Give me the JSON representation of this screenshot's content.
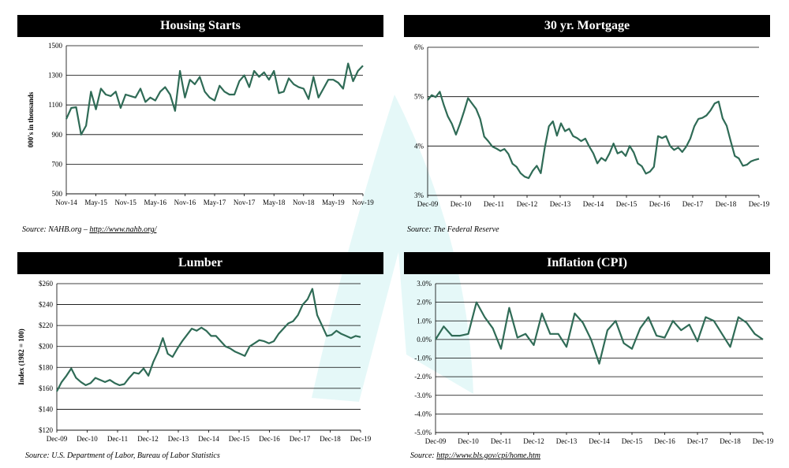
{
  "colors": {
    "line": "#2f6b56",
    "header_bg": "#000000",
    "header_fg": "#ffffff",
    "grid": "#000000",
    "watermark": "#d4f4f4"
  },
  "sources": {
    "housing": {
      "prefix": "Source:  NAHB.org – ",
      "link": "http://www.nahb.org/"
    },
    "mortgage": {
      "prefix": "Source:  The Federal Reserve",
      "link": ""
    },
    "lumber": {
      "prefix": "Source:  U.S. Department of Labor, Bureau of Labor Statistics",
      "link": ""
    },
    "cpi": {
      "prefix": "Source: ",
      "link": "http://www.bls.gov/cpi/home.htm"
    }
  },
  "chart_data": [
    {
      "id": "housing",
      "type": "line",
      "title": "Housing Starts",
      "xlabel": "",
      "ylabel": "000's in thousands",
      "ylim": [
        500,
        1500
      ],
      "yticks": [
        500,
        700,
        900,
        1100,
        1300,
        1500
      ],
      "ytick_labels": [
        "500",
        "700",
        "900",
        "1100",
        "1300",
        "1500"
      ],
      "xtick_labels": [
        "Nov-14",
        "May-15",
        "Nov-15",
        "May-16",
        "Nov-16",
        "May-17",
        "Nov-17",
        "May-18",
        "Nov-18",
        "May-19",
        "Nov-19"
      ],
      "grid": true,
      "series": [
        {
          "values": [
            1005,
            1080,
            1085,
            900,
            960,
            1190,
            1070,
            1210,
            1170,
            1160,
            1190,
            1080,
            1170,
            1160,
            1150,
            1210,
            1120,
            1150,
            1130,
            1190,
            1220,
            1170,
            1060,
            1330,
            1150,
            1270,
            1240,
            1290,
            1190,
            1150,
            1130,
            1230,
            1190,
            1170,
            1170,
            1260,
            1300,
            1220,
            1330,
            1290,
            1320,
            1270,
            1330,
            1180,
            1190,
            1280,
            1240,
            1220,
            1210,
            1140,
            1290,
            1150,
            1210,
            1270,
            1270,
            1250,
            1210,
            1380,
            1260,
            1330,
            1365
          ]
        }
      ]
    },
    {
      "id": "mortgage",
      "type": "line",
      "title": "30 yr. Mortgage",
      "xlabel": "",
      "ylabel": "",
      "ylim": [
        3,
        6
      ],
      "yticks": [
        3,
        4,
        5,
        6
      ],
      "ytick_labels": [
        "3%",
        "4%",
        "5%",
        "6%"
      ],
      "xtick_labels": [
        "Dec-09",
        "Dec-10",
        "Dec-11",
        "Dec-12",
        "Dec-13",
        "Dec-14",
        "Dec-15",
        "Dec-16",
        "Dec-17",
        "Dec-18",
        "Dec-19"
      ],
      "grid": true,
      "series": [
        {
          "values": [
            4.93,
            5.03,
            4.99,
            5.1,
            4.83,
            4.6,
            4.45,
            4.23,
            4.45,
            4.7,
            4.97,
            4.86,
            4.75,
            4.55,
            4.19,
            4.1,
            3.99,
            3.95,
            3.9,
            3.94,
            3.84,
            3.64,
            3.58,
            3.45,
            3.38,
            3.35,
            3.5,
            3.6,
            3.45,
            3.97,
            4.4,
            4.5,
            4.21,
            4.46,
            4.3,
            4.35,
            4.2,
            4.16,
            4.1,
            4.15,
            3.99,
            3.85,
            3.65,
            3.76,
            3.7,
            3.85,
            4.05,
            3.85,
            3.89,
            3.8,
            4.0,
            3.87,
            3.65,
            3.59,
            3.44,
            3.48,
            3.58,
            4.2,
            4.16,
            4.2,
            4.0,
            3.92,
            3.97,
            3.88,
            3.99,
            4.15,
            4.4,
            4.55,
            4.57,
            4.62,
            4.72,
            4.86,
            4.9,
            4.56,
            4.41,
            4.1,
            3.8,
            3.75,
            3.6,
            3.62,
            3.69,
            3.72,
            3.74
          ]
        }
      ]
    },
    {
      "id": "lumber",
      "type": "line",
      "title": "Lumber",
      "xlabel": "",
      "ylabel": "Index (1982 = 100)",
      "ylim": [
        120,
        260
      ],
      "yticks": [
        120,
        140,
        160,
        180,
        200,
        220,
        240,
        260
      ],
      "ytick_labels": [
        "$120",
        "$140",
        "$160",
        "$180",
        "$200",
        "$220",
        "$240",
        "$260"
      ],
      "xtick_labels": [
        "Dec-09",
        "Dec-10",
        "Dec-11",
        "Dec-12",
        "Dec-13",
        "Dec-14",
        "Dec-15",
        "Dec-16",
        "Dec-17",
        "Dec-18",
        "Dec-19"
      ],
      "grid": true,
      "series": [
        {
          "values": [
            157,
            166,
            172,
            179,
            170,
            166,
            163,
            165,
            170,
            168,
            166,
            168,
            165,
            163,
            164,
            170,
            175,
            174,
            179,
            172,
            185,
            195,
            208,
            193,
            190,
            198,
            205,
            211,
            217,
            215,
            218,
            215,
            210,
            210,
            205,
            200,
            198,
            195,
            193,
            191,
            200,
            203,
            206,
            205,
            203,
            205,
            212,
            217,
            222,
            224,
            230,
            240,
            245,
            255,
            230,
            220,
            210,
            211,
            215,
            212,
            210,
            208,
            210,
            209
          ]
        }
      ]
    },
    {
      "id": "cpi",
      "type": "line",
      "title": "Inflation (CPI)",
      "xlabel": "",
      "ylabel": "",
      "ylim": [
        -5,
        3
      ],
      "yticks": [
        -5,
        -4,
        -3,
        -2,
        -1,
        0,
        1,
        2,
        3
      ],
      "ytick_labels": [
        "-5.0%",
        "-4.0%",
        "-3.0%",
        "-2.0%",
        "-1.0%",
        "0.0%",
        "1.0%",
        "2.0%",
        "3.0%"
      ],
      "xtick_labels": [
        "Dec-09",
        "Dec-10",
        "Dec-11",
        "Dec-12",
        "Dec-13",
        "Dec-14",
        "Dec-15",
        "Dec-16",
        "Dec-17",
        "Dec-18",
        "Dec-19"
      ],
      "grid": true,
      "series": [
        {
          "values": [
            0.0,
            0.7,
            0.2,
            0.2,
            0.3,
            2.0,
            1.2,
            0.6,
            -0.5,
            1.7,
            0.1,
            0.3,
            -0.3,
            1.4,
            0.3,
            0.3,
            -0.4,
            1.4,
            0.9,
            0.0,
            -1.3,
            0.5,
            1.0,
            -0.2,
            -0.5,
            0.6,
            1.2,
            0.2,
            0.1,
            1.0,
            0.5,
            0.8,
            -0.1,
            1.2,
            1.0,
            0.3,
            -0.4,
            1.2,
            0.9,
            0.3,
            0.0
          ]
        }
      ]
    }
  ]
}
